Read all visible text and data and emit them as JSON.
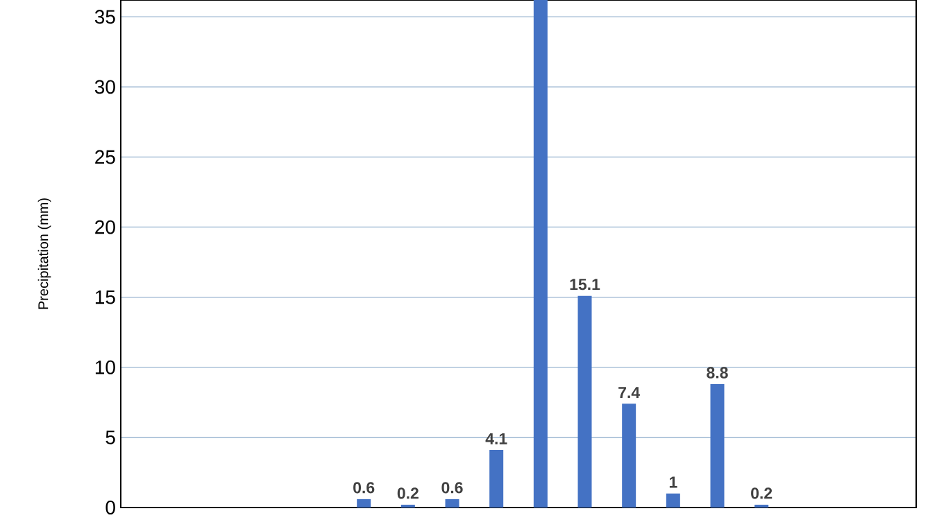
{
  "chart_data": {
    "type": "bar",
    "ylabel": "Precipitation (mm)",
    "categories": [
      null,
      null,
      null,
      null,
      null,
      null,
      null,
      null,
      null,
      null,
      null,
      null,
      null,
      null,
      null,
      null,
      null,
      null
    ],
    "values": [
      0,
      0,
      0,
      0,
      0,
      0.6,
      0.2,
      0.6,
      4.1,
      36.2,
      15.1,
      7.4,
      1,
      8.8,
      0.2,
      0,
      0,
      0
    ],
    "value_labels": [
      null,
      null,
      null,
      null,
      null,
      "0.6",
      "0.2",
      "0.6",
      "4.1",
      null,
      "15.1",
      "7.4",
      "1",
      "8.8",
      "0.2",
      null,
      null,
      null
    ],
    "color": "#4472c4",
    "ylim": [
      0,
      36.2
    ],
    "yticks": [
      0,
      5,
      10,
      15,
      20,
      25,
      30,
      35
    ],
    "grid": "y",
    "tick_labels": "y"
  }
}
